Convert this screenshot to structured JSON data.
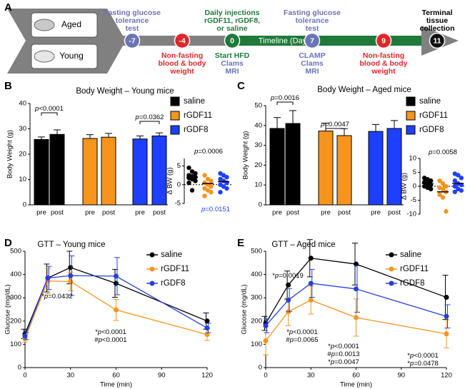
{
  "panels": [
    "A",
    "B",
    "C",
    "D",
    "E"
  ],
  "timeline": {
    "cohorts": [
      "Aged",
      "Young"
    ],
    "axis_label": "Timeline (Days)",
    "events": [
      {
        "day": "-7",
        "color": "#6b74b4",
        "above": [
          {
            "text": "Fasting glucose",
            "color": "#6b74b4"
          },
          {
            "text": "tolerance",
            "color": "#6b74b4"
          },
          {
            "text": "test",
            "color": "#6b74b4"
          }
        ]
      },
      {
        "day": "-4",
        "color": "#e0262b",
        "below": [
          {
            "text": "Non-fasting",
            "color": "#e0262b"
          },
          {
            "text": "blood & body",
            "color": "#e0262b"
          },
          {
            "text": "weight",
            "color": "#e0262b"
          }
        ]
      },
      {
        "day": "0",
        "color": "#1f7a3a",
        "above": [
          {
            "text": "Daily injections",
            "color": "#1f7a3a"
          },
          {
            "text": "rGDF11, rGDF8,",
            "color": "#1f7a3a"
          },
          {
            "text": "or saline",
            "color": "#1f7a3a"
          }
        ],
        "below": [
          {
            "text": "Start HFD",
            "color": "#1f7a3a"
          },
          {
            "text": "Clams",
            "color": "#6b74b4"
          },
          {
            "text": "MRI",
            "color": "#6b74b4"
          }
        ]
      },
      {
        "day": "7",
        "color": "#6b74b4",
        "above": [
          {
            "text": "Fasting glucose",
            "color": "#6b74b4"
          },
          {
            "text": "tolerance",
            "color": "#6b74b4"
          },
          {
            "text": "test",
            "color": "#6b74b4"
          }
        ],
        "below": [
          {
            "text": "CLAMP",
            "color": "#6b74b4"
          },
          {
            "text": "Clams",
            "color": "#6b74b4"
          },
          {
            "text": "MRI",
            "color": "#6b74b4"
          }
        ]
      },
      {
        "day": "9",
        "color": "#e0262b",
        "below": [
          {
            "text": "Non-fasting",
            "color": "#e0262b"
          },
          {
            "text": "blood & body",
            "color": "#e0262b"
          },
          {
            "text": "weight",
            "color": "#e0262b"
          }
        ]
      },
      {
        "day": "11",
        "color": "#111111",
        "above": [
          {
            "text": "Terminal",
            "color": "#000000"
          },
          {
            "text": "tissue",
            "color": "#000000"
          },
          {
            "text": "collection",
            "color": "#000000"
          }
        ]
      }
    ]
  },
  "chart_data": [
    {
      "type": "bar",
      "title": "Body Weight – Young mice",
      "ylabel": "Body Weight (g)",
      "categories": [
        "pre",
        "post"
      ],
      "ylim": [
        0,
        40
      ],
      "yticks": [
        0,
        10,
        20,
        30,
        40
      ],
      "series": [
        {
          "name": "saline",
          "color": "#000000",
          "values": [
            25.8,
            27.8
          ],
          "errors": [
            1.0,
            1.8
          ],
          "delta": [
            4.5,
            3.5,
            3,
            2.5,
            2.2,
            2,
            1.8,
            1.5,
            1,
            0.5,
            -1.5
          ],
          "delta_mean": 2
        },
        {
          "name": "rGDF11",
          "color": "#f7941d",
          "values": [
            26.2,
            26.7
          ],
          "errors": [
            1.5,
            1.5
          ],
          "delta": [
            2.5,
            1.5,
            1,
            0.5,
            0,
            -0.5,
            -1,
            -1.5,
            -2,
            -3
          ],
          "delta_mean": 0.3
        },
        {
          "name": "rGDF8",
          "color": "#1f3fff",
          "values": [
            26.0,
            27.2
          ],
          "errors": [
            1.2,
            1.2
          ],
          "delta": [
            3,
            2.5,
            2,
            1.5,
            1,
            0.5,
            0,
            -0.5,
            -1,
            -2
          ],
          "delta_mean": 0.8
        }
      ],
      "annotations": [
        "p<0.0001",
        "p=0.0362"
      ],
      "inset": {
        "ylabel": "Δ BW (g)",
        "ylim": [
          -5,
          7
        ],
        "yticks": [
          -5,
          0,
          5
        ],
        "annotations": [
          {
            "text": "p=0.0006",
            "color": "#000000"
          },
          {
            "text": "p=0.0151",
            "color": "#1f3fff"
          }
        ]
      }
    },
    {
      "type": "bar",
      "title": "Body Weight – Aged mice",
      "ylabel": "Body Weight (g)",
      "categories": [
        "pre",
        "post"
      ],
      "ylim": [
        0,
        50
      ],
      "yticks": [
        0,
        10,
        20,
        30,
        40,
        50
      ],
      "series": [
        {
          "name": "saline",
          "color": "#000000",
          "values": [
            38.5,
            41.0
          ],
          "errors": [
            5.5,
            6.5
          ],
          "delta": [
            3,
            2.5,
            2,
            1.5,
            1,
            0.5,
            0,
            -0.5,
            -1
          ],
          "delta_mean": 1
        },
        {
          "name": "rGDF11",
          "color": "#f7941d",
          "values": [
            37.2,
            34.9
          ],
          "errors": [
            4.0,
            3.5
          ],
          "delta": [
            2,
            1,
            0,
            -0.5,
            -1,
            -2,
            -3,
            -4,
            -9
          ],
          "delta_mean": -2
        },
        {
          "name": "rGDF8",
          "color": "#1f3fff",
          "values": [
            37.0,
            38.5
          ],
          "errors": [
            3.5,
            4.0
          ],
          "delta": [
            4.5,
            4,
            3,
            2,
            1,
            0.5,
            0,
            -1,
            -1.5,
            -2
          ],
          "delta_mean": 1
        }
      ],
      "annotations": [
        "p=0.0016",
        "p=0.0047"
      ],
      "inset": {
        "ylabel": "Δ BW (g)",
        "ylim": [
          -10,
          10
        ],
        "yticks": [
          -10,
          -5,
          0,
          5,
          10
        ],
        "annotations": [
          {
            "text": "p=0.0058",
            "color": "#000000"
          }
        ]
      }
    },
    {
      "type": "line",
      "title": "GTT – Young mice",
      "xlabel": "Time (min)",
      "ylabel": "Glucose (mg/dL)",
      "x": [
        0,
        15,
        30,
        60,
        120
      ],
      "xlim": [
        0,
        120
      ],
      "xticks": [
        0,
        30,
        60,
        90,
        120
      ],
      "ylim": [
        0,
        500
      ],
      "yticks": [
        0,
        100,
        200,
        300,
        400,
        500
      ],
      "series": [
        {
          "name": "saline",
          "color": "#000000",
          "values": [
            145,
            385,
            430,
            362,
            200
          ],
          "errors": [
            20,
            60,
            70,
            60,
            35
          ]
        },
        {
          "name": "rGDF11",
          "color": "#f7941d",
          "values": [
            125,
            372,
            370,
            248,
            142
          ],
          "errors": [
            15,
            55,
            40,
            45,
            25
          ]
        },
        {
          "name": "rGDF8",
          "color": "#2540d8",
          "values": [
            135,
            385,
            395,
            393,
            170
          ],
          "errors": [
            15,
            50,
            85,
            80,
            20
          ]
        }
      ],
      "annotations": [
        "*p=0.0432",
        "*p<0.0001",
        "#p<0.0001"
      ]
    },
    {
      "type": "line",
      "title": "GTT – Aged mice",
      "xlabel": "Time (min)",
      "ylabel": "Glucose (mg/dL)",
      "x": [
        0,
        15,
        30,
        60,
        120
      ],
      "xlim": [
        0,
        120
      ],
      "xticks": [
        0,
        30,
        60,
        90,
        120
      ],
      "ylim": [
        0,
        500
      ],
      "yticks": [
        0,
        100,
        200,
        300,
        400,
        500
      ],
      "series": [
        {
          "name": "saline",
          "color": "#000000",
          "values": [
            190,
            355,
            470,
            445,
            302
          ],
          "errors": [
            30,
            60,
            80,
            90,
            95
          ]
        },
        {
          "name": "rGDF11",
          "color": "#f7941d",
          "values": [
            115,
            240,
            290,
            215,
            145
          ],
          "errors": [
            60,
            60,
            60,
            80,
            60
          ]
        },
        {
          "name": "rGDF8",
          "color": "#2540d8",
          "values": [
            180,
            290,
            362,
            338,
            220
          ],
          "errors": [
            30,
            50,
            60,
            100,
            50
          ]
        }
      ],
      "annotations": [
        "*p=0.0019",
        "*p<0.0001",
        "#p=0.0065",
        "*p<0.0001",
        "#p=0.0013",
        "*p=0.0047",
        "*p<0.0001",
        "*p=0.0478"
      ]
    }
  ]
}
